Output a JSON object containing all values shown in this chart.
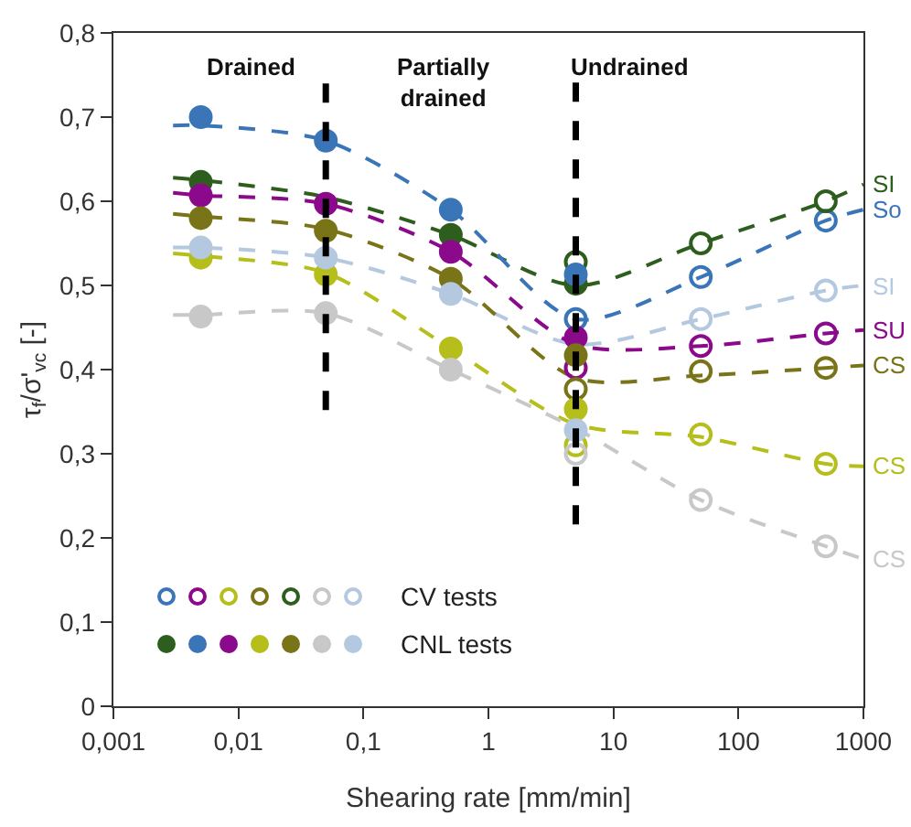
{
  "chart_data": {
    "type": "scatter",
    "xlabel": "Shearing rate [mm/min]",
    "ylabel": "τ$_{f}$/σ'$_{vc}$ [-]",
    "log": "x",
    "xlim": [
      0.001,
      1000
    ],
    "xticks": [
      {
        "value": 0.001,
        "label": "0,001"
      },
      {
        "value": 0.01,
        "label": "0,01"
      },
      {
        "value": 0.1,
        "label": "0,1"
      },
      1,
      10,
      100,
      1000
    ],
    "ylim": [
      0,
      0.8
    ],
    "yticks": [
      0,
      {
        "value": 0.1,
        "label": "0,1"
      },
      {
        "value": 0.2,
        "label": "0,2"
      },
      {
        "value": 0.3,
        "label": "0,3"
      },
      {
        "value": 0.4,
        "label": "0,4"
      },
      {
        "value": 0.5,
        "label": "0,5"
      },
      {
        "value": 0.6,
        "label": "0,6"
      },
      {
        "value": 0.7,
        "label": "0,7"
      },
      {
        "value": 0.8,
        "label": "0,8"
      }
    ],
    "grid": false,
    "legend": "bottom left",
    "annotations": [
      "Drained",
      "Partially\ndrained",
      "Undrained"
    ],
    "ref_lines": [
      {
        "axis": "x",
        "value": 0.05,
        "color": "#000000",
        "line_style": "dashed"
      },
      {
        "axis": "x",
        "value": 5,
        "color": "#000000",
        "line_style": "dashed"
      }
    ],
    "series": [
      {
        "type": "line",
        "name": "SI",
        "color": "#2e5e1e",
        "line_style": "dashed",
        "marker": "none",
        "x": [
          0.003,
          0.005,
          0.05,
          0.5,
          5,
          50,
          500,
          1000
        ],
        "values": [
          0.628,
          0.625,
          0.605,
          0.56,
          0.5,
          0.55,
          0.6,
          0.62
        ]
      },
      {
        "type": "line",
        "name": "So",
        "color": "#3a75b8",
        "line_style": "dashed",
        "marker": "none",
        "x": [
          0.003,
          0.005,
          0.05,
          0.5,
          5,
          50,
          500,
          1000
        ],
        "values": [
          0.69,
          0.69,
          0.672,
          0.59,
          0.46,
          0.51,
          0.577,
          0.59
        ]
      },
      {
        "type": "line",
        "name": "SI",
        "color": "#b4c8e0",
        "line_style": "dashed",
        "marker": "none",
        "x": [
          0.003,
          0.005,
          0.05,
          0.5,
          5,
          50,
          500,
          1000
        ],
        "values": [
          0.545,
          0.545,
          0.533,
          0.49,
          0.43,
          0.46,
          0.494,
          0.5
        ]
      },
      {
        "type": "line",
        "name": "SU",
        "color": "#8b0a8b",
        "line_style": "dashed",
        "marker": "none",
        "x": [
          0.003,
          0.005,
          0.05,
          0.5,
          5,
          50,
          500,
          1000
        ],
        "values": [
          0.61,
          0.607,
          0.597,
          0.54,
          0.43,
          0.428,
          0.443,
          0.447
        ]
      },
      {
        "type": "line",
        "name": "CS",
        "color": "#7a7418",
        "line_style": "dashed",
        "marker": "none",
        "x": [
          0.003,
          0.005,
          0.05,
          0.5,
          5,
          50,
          500,
          1000
        ],
        "values": [
          0.585,
          0.582,
          0.567,
          0.508,
          0.39,
          0.393,
          0.402,
          0.405
        ]
      },
      {
        "type": "line",
        "name": "CS",
        "color": "#b5be1a",
        "line_style": "dashed",
        "marker": "none",
        "x": [
          0.003,
          0.005,
          0.05,
          0.5,
          5,
          50,
          500,
          1000
        ],
        "values": [
          0.538,
          0.535,
          0.515,
          0.425,
          0.335,
          0.32,
          0.288,
          0.285
        ]
      },
      {
        "type": "line",
        "name": "CS",
        "color": "#c8c8c8",
        "line_style": "dashed",
        "marker": "none",
        "x": [
          0.003,
          0.005,
          0.05,
          0.5,
          5,
          50,
          500,
          1000
        ],
        "values": [
          0.465,
          0.465,
          0.467,
          0.4,
          0.33,
          0.245,
          0.19,
          0.175
        ]
      },
      {
        "type": "scatter",
        "marker": "circle-open",
        "color": "#3a75b8",
        "x": [
          5,
          50,
          500
        ],
        "values": [
          0.46,
          0.51,
          0.577
        ]
      },
      {
        "type": "scatter",
        "marker": "circle-open",
        "color": "#8b0a8b",
        "x": [
          5,
          50,
          500
        ],
        "values": [
          0.402,
          0.428,
          0.443
        ]
      },
      {
        "type": "scatter",
        "marker": "circle-open",
        "color": "#b5be1a",
        "x": [
          5,
          50,
          500
        ],
        "values": [
          0.31,
          0.323,
          0.288
        ]
      },
      {
        "type": "scatter",
        "marker": "circle-open",
        "color": "#7a7418",
        "x": [
          5,
          50,
          500
        ],
        "values": [
          0.377,
          0.398,
          0.402
        ]
      },
      {
        "type": "scatter",
        "marker": "circle-open",
        "color": "#2e5e1e",
        "x": [
          5,
          50,
          500
        ],
        "values": [
          0.528,
          0.55,
          0.6
        ]
      },
      {
        "type": "scatter",
        "marker": "circle-open",
        "color": "#c8c8c8",
        "x": [
          5,
          50,
          500
        ],
        "values": [
          0.3,
          0.245,
          0.19
        ]
      },
      {
        "type": "scatter",
        "marker": "circle-open",
        "name": "CV tests",
        "color": "#b4c8e0",
        "x": [
          50,
          500
        ],
        "values": [
          0.46,
          0.494
        ]
      },
      {
        "type": "scatter",
        "marker": "circle",
        "color": "#2e5e1e",
        "x": [
          0.005,
          0.5,
          5
        ],
        "values": [
          0.623,
          0.56,
          0.502
        ]
      },
      {
        "type": "scatter",
        "marker": "circle",
        "color": "#3a75b8",
        "x": [
          0.005,
          0.05,
          0.5,
          5
        ],
        "values": [
          0.7,
          0.672,
          0.59,
          0.513
        ]
      },
      {
        "type": "scatter",
        "marker": "circle",
        "color": "#8b0a8b",
        "x": [
          0.005,
          0.05,
          0.5,
          5
        ],
        "values": [
          0.607,
          0.597,
          0.54,
          0.438
        ]
      },
      {
        "type": "scatter",
        "marker": "circle",
        "color": "#b5be1a",
        "x": [
          0.005,
          0.05,
          0.5,
          5
        ],
        "values": [
          0.533,
          0.513,
          0.425,
          0.353
        ]
      },
      {
        "type": "scatter",
        "marker": "circle",
        "color": "#7a7418",
        "x": [
          0.005,
          0.05,
          0.5,
          5
        ],
        "values": [
          0.58,
          0.565,
          0.508,
          0.417
        ]
      },
      {
        "type": "scatter",
        "marker": "circle",
        "color": "#c8c8c8",
        "x": [
          0.005,
          0.05,
          0.5
        ],
        "values": [
          0.463,
          0.467,
          0.4
        ]
      },
      {
        "type": "scatter",
        "marker": "circle",
        "name": "CNL tests",
        "color": "#b4c8e0",
        "x": [
          0.005,
          0.05,
          0.5,
          5
        ],
        "values": [
          0.545,
          0.533,
          0.49,
          0.328
        ]
      }
    ]
  }
}
